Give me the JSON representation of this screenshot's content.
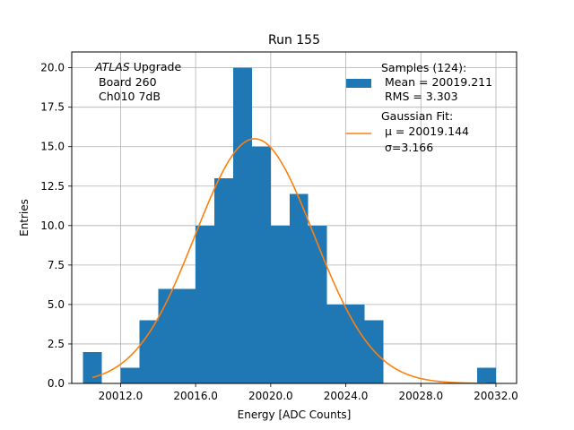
{
  "chart_data": {
    "type": "bar",
    "subtype": "histogram",
    "title": "Run 155",
    "xlabel": "Energy [ADC Counts]",
    "ylabel": "Entries",
    "xlim": [
      9.4,
      33.1
    ],
    "ylim": [
      0,
      21
    ],
    "x_tick_values": [
      12,
      16,
      20,
      24,
      28,
      32
    ],
    "x_tick_labels": [
      "20012.0",
      "20016.0",
      "20020.0",
      "20024.0",
      "20028.0",
      "20032.0"
    ],
    "y_ticks": [
      0,
      2.5,
      5,
      7.5,
      10,
      12.5,
      15,
      17.5,
      20
    ],
    "y_tick_labels": [
      "0.0",
      "2.5",
      "5.0",
      "7.5",
      "10.0",
      "12.5",
      "15.0",
      "17.5",
      "20.0"
    ],
    "x_offset": 20000,
    "grid": true,
    "bins": [
      {
        "x0": 10,
        "x1": 11,
        "count": 2
      },
      {
        "x0": 11,
        "x1": 12,
        "count": 0
      },
      {
        "x0": 12,
        "x1": 13,
        "count": 1
      },
      {
        "x0": 13,
        "x1": 14,
        "count": 4
      },
      {
        "x0": 14,
        "x1": 15,
        "count": 6
      },
      {
        "x0": 15,
        "x1": 16,
        "count": 6
      },
      {
        "x0": 16,
        "x1": 17,
        "count": 10
      },
      {
        "x0": 17,
        "x1": 18,
        "count": 13
      },
      {
        "x0": 18,
        "x1": 19,
        "count": 20
      },
      {
        "x0": 19,
        "x1": 20,
        "count": 15
      },
      {
        "x0": 20,
        "x1": 21,
        "count": 10
      },
      {
        "x0": 21,
        "x1": 22,
        "count": 12
      },
      {
        "x0": 22,
        "x1": 23,
        "count": 10
      },
      {
        "x0": 23,
        "x1": 24,
        "count": 5
      },
      {
        "x0": 24,
        "x1": 25,
        "count": 5
      },
      {
        "x0": 25,
        "x1": 26,
        "count": 4
      },
      {
        "x0": 31,
        "x1": 32,
        "count": 1
      }
    ],
    "fit": {
      "type": "gaussian",
      "mu": 19.144,
      "sigma": 3.166,
      "amplitude": 15.5,
      "x_range": [
        10.5,
        31.5
      ]
    },
    "colors": {
      "histogram": "#1f77b4",
      "fit": "#ff7f0e",
      "grid": "#b0b0b0"
    },
    "annotation": {
      "line1_italic": "ATLAS",
      "line1_rest": " Upgrade",
      "line2": "Board 260",
      "line3": "Ch010 7dB"
    },
    "legend": {
      "position": "upper-right",
      "samples_title": "Samples (124):",
      "samples_mean": " Mean = 20019.211",
      "samples_rms": " RMS = 3.303",
      "fit_title": "Gaussian Fit:",
      "fit_mu": "μ = 20019.144",
      "fit_sigma": "σ=3.166"
    }
  }
}
